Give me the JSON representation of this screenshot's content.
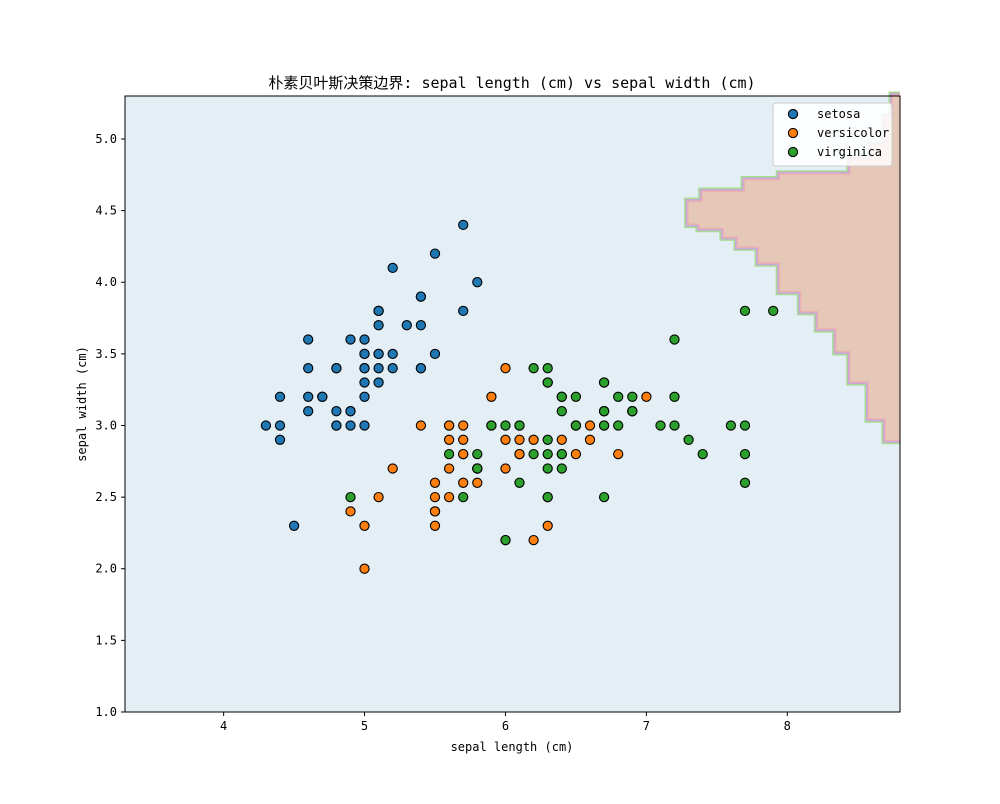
{
  "chart_data": {
    "type": "scatter",
    "title": "朴素贝叶斯决策边界: sepal length (cm) vs sepal width (cm)",
    "xlabel": "sepal length (cm)",
    "ylabel": "sepal width (cm)",
    "xlim": [
      3.3,
      8.8
    ],
    "ylim": [
      1.0,
      5.3
    ],
    "xticks": [
      4,
      5,
      6,
      7,
      8
    ],
    "xtick_labels": [
      "4",
      "5",
      "6",
      "7",
      "8"
    ],
    "yticks": [
      1.0,
      1.5,
      2.0,
      2.5,
      3.0,
      3.5,
      4.0,
      4.5,
      5.0
    ],
    "ytick_labels": [
      "1.0",
      "1.5",
      "2.0",
      "2.5",
      "3.0",
      "3.5",
      "4.0",
      "4.5",
      "5.0"
    ],
    "grid": false,
    "legend_position": "top-right",
    "background_region": {
      "name": "setosa region",
      "color": "#e3eef5"
    },
    "decision_regions": [
      {
        "name": "virginica region",
        "color": "#e6c8b8",
        "edge_colors": [
          "#a8dc94",
          "#c8a8d8",
          "#eab0b2"
        ],
        "boundary": [
          [
            8.8,
            5.3
          ],
          [
            8.75,
            5.3
          ],
          [
            8.75,
            5.15
          ],
          [
            8.7,
            5.15
          ],
          [
            8.7,
            4.95
          ],
          [
            8.6,
            4.95
          ],
          [
            8.6,
            4.85
          ],
          [
            8.45,
            4.85
          ],
          [
            8.45,
            4.75
          ],
          [
            7.95,
            4.75
          ],
          [
            7.95,
            4.71
          ],
          [
            7.7,
            4.71
          ],
          [
            7.7,
            4.63
          ],
          [
            7.4,
            4.63
          ],
          [
            7.4,
            4.56
          ],
          [
            7.3,
            4.56
          ],
          [
            7.3,
            4.41
          ],
          [
            7.38,
            4.41
          ],
          [
            7.38,
            4.38
          ],
          [
            7.55,
            4.38
          ],
          [
            7.55,
            4.32
          ],
          [
            7.65,
            4.32
          ],
          [
            7.65,
            4.25
          ],
          [
            7.8,
            4.25
          ],
          [
            7.8,
            4.14
          ],
          [
            7.95,
            4.14
          ],
          [
            7.95,
            3.94
          ],
          [
            8.1,
            3.94
          ],
          [
            8.1,
            3.8
          ],
          [
            8.22,
            3.8
          ],
          [
            8.22,
            3.68
          ],
          [
            8.35,
            3.68
          ],
          [
            8.35,
            3.52
          ],
          [
            8.45,
            3.52
          ],
          [
            8.45,
            3.31
          ],
          [
            8.58,
            3.31
          ],
          [
            8.58,
            3.05
          ],
          [
            8.7,
            3.05
          ],
          [
            8.7,
            2.9
          ],
          [
            8.8,
            2.9
          ]
        ]
      }
    ],
    "series": [
      {
        "name": "setosa",
        "color": "#1f77b4",
        "points": [
          [
            5.1,
            3.5
          ],
          [
            4.9,
            3.0
          ],
          [
            4.7,
            3.2
          ],
          [
            4.6,
            3.1
          ],
          [
            5.0,
            3.6
          ],
          [
            5.4,
            3.9
          ],
          [
            4.6,
            3.4
          ],
          [
            5.0,
            3.4
          ],
          [
            4.4,
            2.9
          ],
          [
            4.9,
            3.1
          ],
          [
            5.4,
            3.7
          ],
          [
            4.8,
            3.4
          ],
          [
            4.8,
            3.0
          ],
          [
            4.3,
            3.0
          ],
          [
            5.8,
            4.0
          ],
          [
            5.7,
            4.4
          ],
          [
            5.4,
            3.9
          ],
          [
            5.1,
            3.5
          ],
          [
            5.7,
            3.8
          ],
          [
            5.1,
            3.8
          ],
          [
            5.4,
            3.4
          ],
          [
            5.1,
            3.7
          ],
          [
            4.6,
            3.6
          ],
          [
            5.1,
            3.3
          ],
          [
            4.8,
            3.4
          ],
          [
            5.0,
            3.0
          ],
          [
            5.0,
            3.4
          ],
          [
            5.2,
            3.5
          ],
          [
            5.2,
            3.4
          ],
          [
            4.7,
            3.2
          ],
          [
            4.8,
            3.1
          ],
          [
            5.4,
            3.4
          ],
          [
            5.2,
            4.1
          ],
          [
            5.5,
            4.2
          ],
          [
            4.9,
            3.1
          ],
          [
            5.0,
            3.2
          ],
          [
            5.5,
            3.5
          ],
          [
            4.9,
            3.6
          ],
          [
            4.4,
            3.0
          ],
          [
            5.1,
            3.4
          ],
          [
            5.0,
            3.5
          ],
          [
            4.5,
            2.3
          ],
          [
            4.4,
            3.2
          ],
          [
            5.0,
            3.5
          ],
          [
            5.1,
            3.8
          ],
          [
            4.8,
            3.0
          ],
          [
            5.1,
            3.8
          ],
          [
            4.6,
            3.2
          ],
          [
            5.3,
            3.7
          ],
          [
            5.0,
            3.3
          ]
        ]
      },
      {
        "name": "versicolor",
        "color": "#ff7f0e",
        "points": [
          [
            7.0,
            3.2
          ],
          [
            6.4,
            3.2
          ],
          [
            6.9,
            3.1
          ],
          [
            5.5,
            2.3
          ],
          [
            6.5,
            2.8
          ],
          [
            5.7,
            2.8
          ],
          [
            6.3,
            3.3
          ],
          [
            4.9,
            2.4
          ],
          [
            6.6,
            2.9
          ],
          [
            5.2,
            2.7
          ],
          [
            5.0,
            2.0
          ],
          [
            5.9,
            3.0
          ],
          [
            6.0,
            2.2
          ],
          [
            6.1,
            2.9
          ],
          [
            5.6,
            2.9
          ],
          [
            6.7,
            3.1
          ],
          [
            5.6,
            3.0
          ],
          [
            5.8,
            2.7
          ],
          [
            6.2,
            2.2
          ],
          [
            5.6,
            2.5
          ],
          [
            5.9,
            3.2
          ],
          [
            6.1,
            2.8
          ],
          [
            6.3,
            2.5
          ],
          [
            6.1,
            2.8
          ],
          [
            6.4,
            2.9
          ],
          [
            6.6,
            3.0
          ],
          [
            6.8,
            2.8
          ],
          [
            6.7,
            3.0
          ],
          [
            6.0,
            2.9
          ],
          [
            5.7,
            2.6
          ],
          [
            5.5,
            2.4
          ],
          [
            5.5,
            2.4
          ],
          [
            5.8,
            2.7
          ],
          [
            6.0,
            2.7
          ],
          [
            5.4,
            3.0
          ],
          [
            6.0,
            3.4
          ],
          [
            6.7,
            3.1
          ],
          [
            6.3,
            2.3
          ],
          [
            5.6,
            3.0
          ],
          [
            5.5,
            2.5
          ],
          [
            5.5,
            2.6
          ],
          [
            6.1,
            3.0
          ],
          [
            5.8,
            2.6
          ],
          [
            5.0,
            2.3
          ],
          [
            5.6,
            2.7
          ],
          [
            5.7,
            3.0
          ],
          [
            5.7,
            2.9
          ],
          [
            6.2,
            2.9
          ],
          [
            5.1,
            2.5
          ],
          [
            5.7,
            2.8
          ]
        ]
      },
      {
        "name": "virginica",
        "color": "#2ca02c",
        "points": [
          [
            6.3,
            3.3
          ],
          [
            5.8,
            2.7
          ],
          [
            7.1,
            3.0
          ],
          [
            6.3,
            2.9
          ],
          [
            6.5,
            3.0
          ],
          [
            7.6,
            3.0
          ],
          [
            4.9,
            2.5
          ],
          [
            7.3,
            2.9
          ],
          [
            6.7,
            2.5
          ],
          [
            7.2,
            3.6
          ],
          [
            6.5,
            3.2
          ],
          [
            6.4,
            2.7
          ],
          [
            6.8,
            3.0
          ],
          [
            5.7,
            2.5
          ],
          [
            5.8,
            2.8
          ],
          [
            6.4,
            3.2
          ],
          [
            6.5,
            3.0
          ],
          [
            7.7,
            3.8
          ],
          [
            7.7,
            2.6
          ],
          [
            6.0,
            2.2
          ],
          [
            6.9,
            3.2
          ],
          [
            5.6,
            2.8
          ],
          [
            7.7,
            2.8
          ],
          [
            6.3,
            2.7
          ],
          [
            6.7,
            3.3
          ],
          [
            7.2,
            3.2
          ],
          [
            6.2,
            2.8
          ],
          [
            6.1,
            3.0
          ],
          [
            6.4,
            2.8
          ],
          [
            7.2,
            3.0
          ],
          [
            7.4,
            2.8
          ],
          [
            7.9,
            3.8
          ],
          [
            6.4,
            2.8
          ],
          [
            6.3,
            2.8
          ],
          [
            6.1,
            2.6
          ],
          [
            7.7,
            3.0
          ],
          [
            6.3,
            3.4
          ],
          [
            6.4,
            3.1
          ],
          [
            6.0,
            3.0
          ],
          [
            6.9,
            3.1
          ],
          [
            6.7,
            3.1
          ],
          [
            6.9,
            3.1
          ],
          [
            5.8,
            2.7
          ],
          [
            6.8,
            3.2
          ],
          [
            6.7,
            3.3
          ],
          [
            6.7,
            3.0
          ],
          [
            6.3,
            2.5
          ],
          [
            6.5,
            3.0
          ],
          [
            6.2,
            3.4
          ],
          [
            5.9,
            3.0
          ]
        ]
      }
    ]
  }
}
